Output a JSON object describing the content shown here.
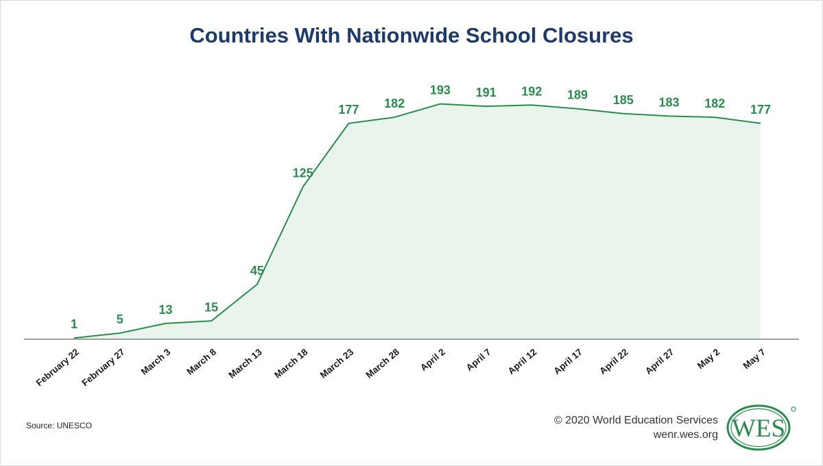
{
  "chart_data": {
    "type": "area",
    "title": "Countries With Nationwide School Closures",
    "categories": [
      "February 22",
      "February 27",
      "March 3",
      "March 8",
      "March 13",
      "March 18",
      "March 23",
      "March 28",
      "April 2",
      "April 7",
      "April 12",
      "April 17",
      "April 22",
      "April 27",
      "May 2",
      "May 7"
    ],
    "values": [
      1,
      5,
      13,
      15,
      45,
      125,
      177,
      182,
      193,
      191,
      192,
      189,
      185,
      183,
      182,
      177
    ],
    "ylim": [
      0,
      195
    ],
    "xlabel": "",
    "ylabel": "",
    "grid": false,
    "colors": {
      "line": "#2b8a4e",
      "fill": "#e9f4ec",
      "label": "#2b8a4e",
      "axis": "#666666"
    }
  },
  "footer": {
    "source": "Source: UNESCO",
    "copyright": "© 2020 World Education Services",
    "website": "wenr.wes.org",
    "logo_text": "WES",
    "logo_color": "#2b8a4e"
  }
}
